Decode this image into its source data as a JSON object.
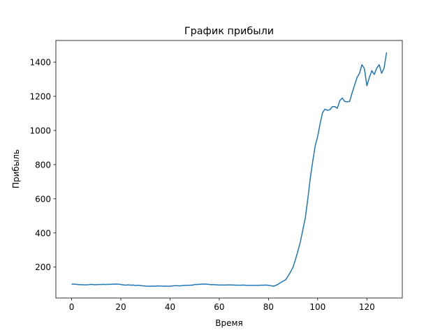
{
  "chart_data": {
    "type": "line",
    "title": "График прибыли",
    "xlabel": "Время",
    "ylabel": "Прибыль",
    "x": [
      0,
      1,
      2,
      3,
      4,
      5,
      6,
      7,
      8,
      9,
      10,
      11,
      12,
      13,
      14,
      15,
      16,
      17,
      18,
      19,
      20,
      21,
      22,
      23,
      24,
      25,
      26,
      27,
      28,
      29,
      30,
      31,
      32,
      33,
      34,
      35,
      36,
      37,
      38,
      39,
      40,
      41,
      42,
      43,
      44,
      45,
      46,
      47,
      48,
      49,
      50,
      51,
      52,
      53,
      54,
      55,
      56,
      57,
      58,
      59,
      60,
      61,
      62,
      63,
      64,
      65,
      66,
      67,
      68,
      69,
      70,
      71,
      72,
      73,
      74,
      75,
      76,
      77,
      78,
      79,
      80,
      81,
      82,
      83,
      84,
      85,
      86,
      87,
      88,
      89,
      90,
      91,
      92,
      93,
      94,
      95,
      96,
      97,
      98,
      99,
      100,
      101,
      102,
      103,
      104,
      105,
      106,
      107,
      108,
      109,
      110,
      111,
      112,
      113,
      114,
      115,
      116,
      117,
      118,
      119,
      120,
      121,
      122,
      123,
      124,
      125,
      126,
      127,
      128
    ],
    "series": [
      {
        "name": "Прибыль",
        "color": "#1f77b4",
        "values": [
          100,
          100,
          99,
          97,
          97,
          96,
          96,
          97,
          99,
          97,
          97,
          98,
          98,
          99,
          98,
          99,
          99,
          100,
          101,
          100,
          98,
          96,
          94,
          96,
          94,
          95,
          92,
          94,
          92,
          90,
          89,
          88,
          88,
          89,
          88,
          90,
          89,
          88,
          89,
          88,
          88,
          90,
          91,
          91,
          90,
          92,
          93,
          93,
          94,
          94,
          98,
          98,
          99,
          100,
          101,
          100,
          98,
          97,
          97,
          96,
          95,
          95,
          95,
          95,
          96,
          95,
          95,
          94,
          94,
          94,
          95,
          93,
          93,
          93,
          93,
          93,
          93,
          94,
          94,
          95,
          93,
          91,
          88,
          93,
          100,
          110,
          118,
          126,
          148,
          172,
          200,
          245,
          295,
          350,
          420,
          490,
          600,
          720,
          820,
          910,
          965,
          1040,
          1105,
          1125,
          1118,
          1122,
          1140,
          1140,
          1130,
          1175,
          1190,
          1170,
          1168,
          1170,
          1220,
          1265,
          1310,
          1335,
          1385,
          1362,
          1262,
          1310,
          1350,
          1328,
          1365,
          1385,
          1335,
          1365,
          1457
        ]
      }
    ],
    "xlim": [
      -6.4,
      134.4
    ],
    "ylim": [
      19,
      1527
    ],
    "xticks": [
      0,
      20,
      40,
      60,
      80,
      100,
      120
    ],
    "yticks": [
      200,
      400,
      600,
      800,
      1000,
      1200,
      1400
    ]
  }
}
